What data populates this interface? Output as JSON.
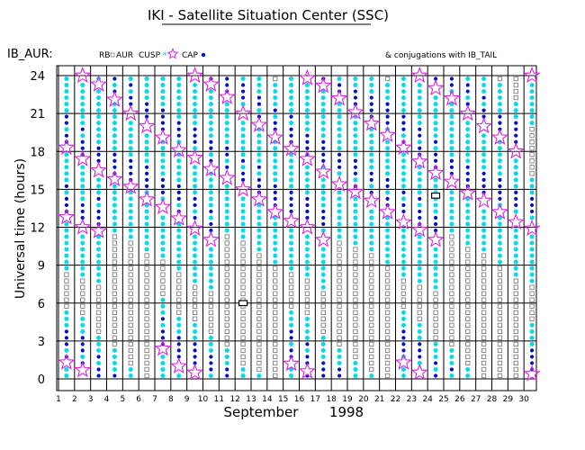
{
  "chart_data": {
    "type": "scatter",
    "title": "IKI - Satellite Situation Center (SSC)",
    "satellite_label": "IB_AUR:",
    "legend": [
      {
        "label": "RB",
        "marker": "none"
      },
      {
        "label": "AUR",
        "marker": "square"
      },
      {
        "label": "CUSP",
        "marker": "asterisk"
      },
      {
        "label": "CAP",
        "marker": "dot"
      }
    ],
    "conjugation_note": "& conjugations with IB_TAIL",
    "ylabel": "Universal time (hours)",
    "xlabel": "September",
    "year": "1998",
    "x_ticks": [
      "1",
      "2",
      "3",
      "4",
      "5",
      "6",
      "7",
      "8",
      "9",
      "10",
      "11",
      "12",
      "13",
      "14",
      "15",
      "16",
      "17",
      "18",
      "19",
      "20",
      "21",
      "22",
      "23",
      "24",
      "25",
      "26",
      "27",
      "28",
      "29",
      "30"
    ],
    "y_ticks": [
      "0",
      "3",
      "6",
      "9",
      "12",
      "15",
      "18",
      "21",
      "24"
    ],
    "xlim": [
      1,
      31
    ],
    "ylim": [
      0,
      24
    ],
    "colors": {
      "aur": "#808080",
      "cusp": "#00d8e8",
      "cap": "#0010c8",
      "star": "#e020e0",
      "conjugation": "#000000"
    },
    "star_times": [
      [
        1.3,
        12.8,
        18.3
      ],
      [
        0.7,
        12.0,
        17.4,
        24.0
      ],
      [
        11.7,
        16.5,
        23.3
      ],
      [
        15.8,
        22.1
      ],
      [
        15.2,
        21.0
      ],
      [
        14.2,
        20.0
      ],
      [
        2.4,
        13.6,
        19.1
      ],
      [
        1.0,
        12.7,
        18.1
      ],
      [
        0.5,
        11.9,
        17.5,
        24.0
      ],
      [
        11.0,
        16.6,
        23.3
      ],
      [
        15.9,
        22.3
      ],
      [
        15.0,
        21.0
      ],
      [
        14.2,
        20.1
      ],
      [
        13.2,
        19.1
      ],
      [
        1.2,
        12.5,
        18.2
      ],
      [
        0.6,
        12.0,
        17.4,
        23.8
      ],
      [
        11.0,
        16.4,
        23.2
      ],
      [
        15.4,
        22.2
      ],
      [
        14.8,
        21.1
      ],
      [
        14.1,
        20.2
      ],
      [
        13.2,
        19.3
      ],
      [
        1.3,
        12.4,
        18.3
      ],
      [
        0.5,
        11.8,
        17.2,
        24.0
      ],
      [
        11.0,
        16.3,
        23.0
      ],
      [
        15.6,
        22.2
      ],
      [
        14.7,
        21.0
      ],
      [
        14.1,
        20.0
      ],
      [
        13.2,
        19.1
      ],
      [
        12.4,
        18.0
      ],
      [
        0.4,
        11.9,
        24.0
      ]
    ],
    "conjugations": [
      {
        "day": 12,
        "ut": 6.0
      },
      {
        "day": 24,
        "ut": 14.5
      }
    ]
  }
}
